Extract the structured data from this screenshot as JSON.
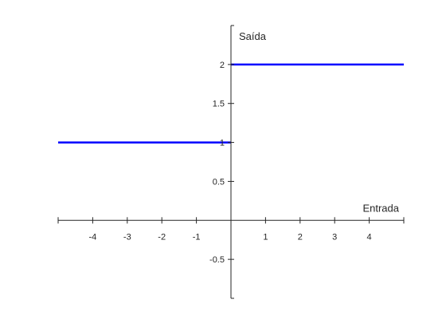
{
  "chart_data": {
    "type": "line",
    "xlabel": "Entrada",
    "ylabel": "Saída",
    "xlim": [
      -5,
      5
    ],
    "ylim": [
      -1,
      2.5
    ],
    "x_ticks": [
      -4,
      -3,
      -2,
      -1,
      1,
      2,
      3,
      4
    ],
    "x_tick_labels": [
      "-4",
      "-3",
      "-2",
      "-1",
      "1",
      "2",
      "3",
      "4"
    ],
    "y_ticks": [
      -0.5,
      0.5,
      1,
      1.5,
      2
    ],
    "y_tick_labels": [
      "-0.5",
      "0.5",
      "1",
      "1.5",
      "2"
    ],
    "axis_location": "origin",
    "grid": false,
    "series": [
      {
        "x": [
          -5,
          0
        ],
        "y": [
          1,
          1
        ]
      },
      {
        "x": [
          0,
          5
        ],
        "y": [
          2,
          2
        ]
      }
    ],
    "colors": {
      "line": "#0000ff",
      "axis": "#262626",
      "text": "#262626"
    }
  }
}
